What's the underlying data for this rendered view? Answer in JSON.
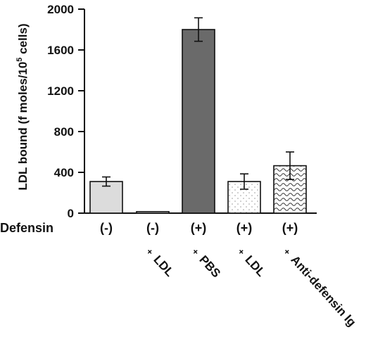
{
  "chart_data": {
    "type": "bar",
    "ylabel": "LDL  bound  (f moles/10",
    "ylabel_sup": "5",
    "ylabel_tail": "  cells)",
    "ylim": [
      0,
      2000
    ],
    "yticks": [
      "0",
      "400",
      "800",
      "1200",
      "1600",
      "2000"
    ],
    "row_label": "Defensin",
    "categories": [
      "(-)",
      "(-)",
      "(+)",
      "(+)",
      "(+)"
    ],
    "treatments": [
      "",
      "LDL",
      "PBS",
      "LDL",
      "Anti-defensin Ig"
    ],
    "treatment_prefix": "+",
    "values": [
      310,
      15,
      1800,
      310,
      465
    ],
    "errors": [
      45,
      0,
      115,
      75,
      135
    ],
    "fills": [
      "light-gray",
      "white",
      "dark-gray",
      "light-dotted",
      "wavy-pattern"
    ]
  }
}
